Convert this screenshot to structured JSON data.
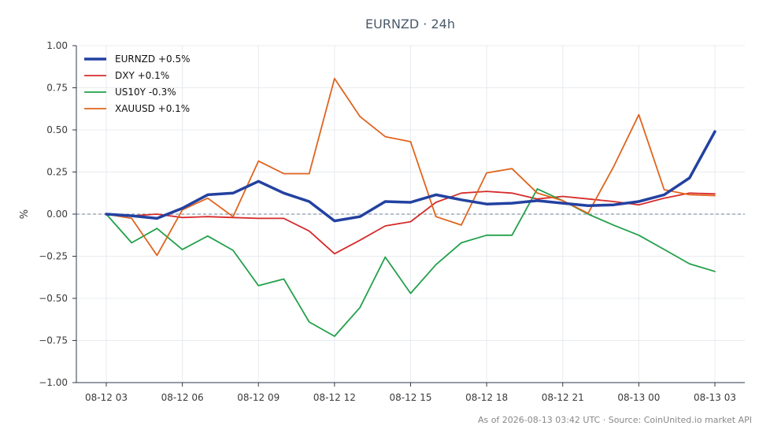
{
  "chart_data": {
    "type": "line",
    "title": "EURNZD · 24h",
    "xlabel": "",
    "ylabel": "%",
    "ylim": [
      -1.0,
      1.0
    ],
    "yticks": [
      1.0,
      0.75,
      0.5,
      0.25,
      0.0,
      -0.25,
      -0.5,
      -0.75,
      -1.0
    ],
    "ytick_labels": [
      "1.00",
      "0.75",
      "0.50",
      "0.25",
      "0.00",
      "−0.25",
      "−0.50",
      "−0.75",
      "−1.00"
    ],
    "x": [
      "08-12 03:00",
      "08-12 04:00",
      "08-12 05:00",
      "08-12 06:00",
      "08-12 07:00",
      "08-12 08:00",
      "08-12 09:00",
      "08-12 10:00",
      "08-12 11:00",
      "08-12 12:00",
      "08-12 13:00",
      "08-12 14:00",
      "08-12 15:00",
      "08-12 16:00",
      "08-12 17:00",
      "08-12 18:00",
      "08-12 19:00",
      "08-12 20:00",
      "08-12 21:00",
      "08-12 22:00",
      "08-12 23:00",
      "08-13 00:00",
      "08-13 01:00",
      "08-13 02:00",
      "08-13 03:00"
    ],
    "xticks": [
      "08-12 03:00",
      "08-12 06:00",
      "08-12 09:00",
      "08-12 12:00",
      "08-12 15:00",
      "08-12 18:00",
      "08-12 21:00",
      "08-13 00:00",
      "08-13 03:00"
    ],
    "xtick_labels": [
      "08-12 03",
      "08-12 06",
      "08-12 09",
      "08-12 12",
      "08-12 15",
      "08-12 18",
      "08-12 21",
      "08-13 00",
      "08-13 03"
    ],
    "series": [
      {
        "name": "EURNZD +0.5%",
        "color": "#2341a0",
        "width": 3.5,
        "values": [
          0.0,
          -0.01,
          -0.025,
          0.035,
          0.115,
          0.125,
          0.195,
          0.125,
          0.075,
          -0.04,
          -0.015,
          0.075,
          0.07,
          0.115,
          0.085,
          0.06,
          0.065,
          0.08,
          0.065,
          0.05,
          0.055,
          0.075,
          0.115,
          0.215,
          0.49
        ]
      },
      {
        "name": "DXY +0.1%",
        "color": "#d62b2b",
        "width": 1.8,
        "values": [
          0.0,
          -0.01,
          0.0,
          -0.02,
          -0.015,
          -0.02,
          -0.025,
          -0.025,
          -0.1,
          -0.235,
          -0.155,
          -0.07,
          -0.045,
          0.07,
          0.125,
          0.135,
          0.125,
          0.09,
          0.105,
          0.09,
          0.075,
          0.055,
          0.095,
          0.125,
          0.12
        ]
      },
      {
        "name": "US10Y -0.3%",
        "color": "#23a04a",
        "width": 1.8,
        "values": [
          0.0,
          -0.17,
          -0.085,
          -0.21,
          -0.13,
          -0.215,
          -0.425,
          -0.385,
          -0.64,
          -0.725,
          -0.555,
          -0.255,
          -0.47,
          -0.3,
          -0.17,
          -0.125,
          -0.125,
          0.15,
          0.08,
          0.0,
          -0.065,
          -0.125,
          -0.21,
          -0.295,
          -0.34
        ]
      },
      {
        "name": "XAUUSD +0.1%",
        "color": "#e0641e",
        "width": 1.8,
        "values": [
          0.0,
          -0.025,
          -0.245,
          0.025,
          0.095,
          -0.015,
          0.315,
          0.24,
          0.24,
          0.805,
          0.58,
          0.46,
          0.43,
          -0.015,
          -0.065,
          0.245,
          0.27,
          0.125,
          0.08,
          0.005,
          0.28,
          0.59,
          0.145,
          0.115,
          0.11
        ]
      }
    ],
    "grid": true,
    "legend_position": "top-left",
    "zero_line": true
  },
  "footer": "As of 2026-08-13 03:42 UTC · Source: CoinUnited.io market API"
}
